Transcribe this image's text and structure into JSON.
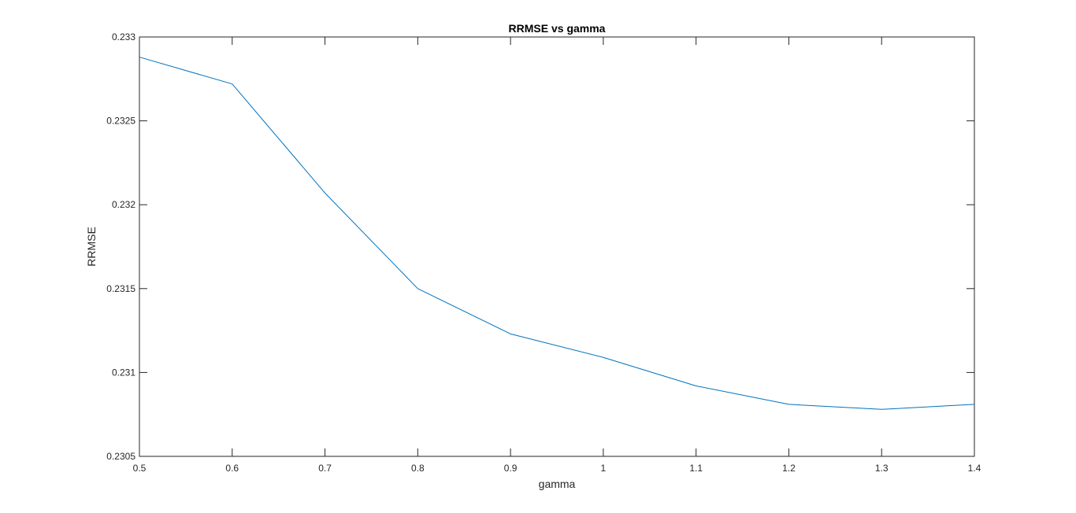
{
  "chart_data": {
    "type": "line",
    "title": "RRMSE vs gamma",
    "xlabel": "gamma",
    "ylabel": "RRMSE",
    "xlim": [
      0.5,
      1.4
    ],
    "ylim": [
      0.2305,
      0.233
    ],
    "xticks": [
      0.5,
      0.6,
      0.7,
      0.8,
      0.9,
      1.0,
      1.1,
      1.2,
      1.3,
      1.4
    ],
    "xtick_labels": [
      "0.5",
      "0.6",
      "0.7",
      "0.8",
      "0.9",
      "1",
      "1.1",
      "1.2",
      "1.3",
      "1.4"
    ],
    "yticks": [
      0.2305,
      0.231,
      0.2315,
      0.232,
      0.2325,
      0.233
    ],
    "ytick_labels": [
      "0.2305",
      "0.231",
      "0.2315",
      "0.232",
      "0.2325",
      "0.233"
    ],
    "grid": false,
    "box": true,
    "series": [
      {
        "color": "#0072BD",
        "x": [
          0.5,
          0.6,
          0.7,
          0.8,
          0.9,
          1.0,
          1.1,
          1.2,
          1.3,
          1.4
        ],
        "y": [
          0.23288,
          0.23272,
          0.23207,
          0.2315,
          0.23123,
          0.23109,
          0.23092,
          0.23081,
          0.23078,
          0.23081
        ]
      }
    ]
  }
}
